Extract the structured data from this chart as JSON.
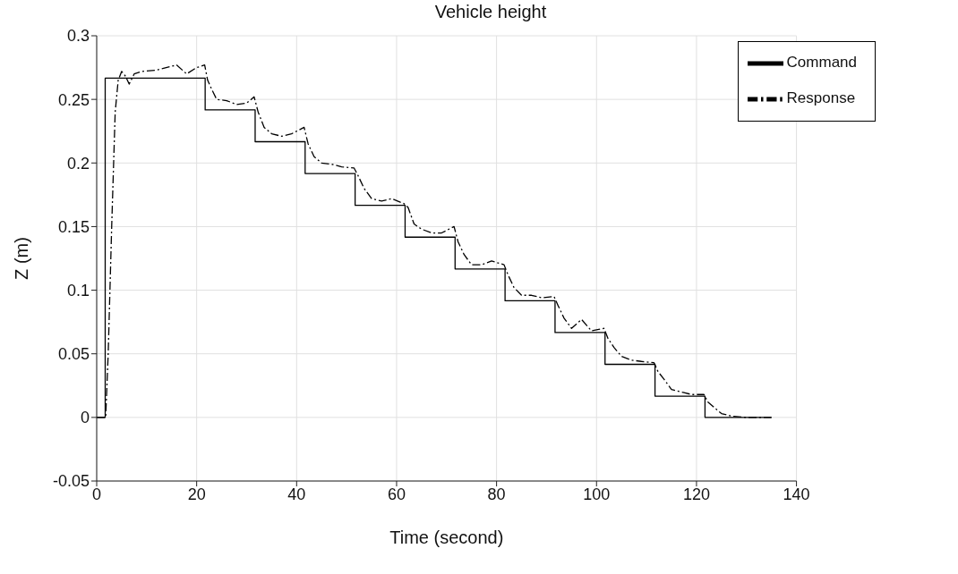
{
  "chart_data": {
    "type": "line",
    "title": "Vehicle height",
    "xlabel": "Time (second)",
    "ylabel": "Z (m)",
    "xlim": [
      0,
      140
    ],
    "xticks": [
      0,
      20,
      40,
      60,
      80,
      100,
      120,
      140
    ],
    "ylim": [
      -0.05,
      0.3
    ],
    "yticks": [
      -0.05,
      0,
      0.05,
      0.1,
      0.15,
      0.2,
      0.25,
      0.3
    ],
    "grid": true,
    "legend": "top right",
    "marker": "none",
    "series": [
      {
        "name": "Command",
        "type": "step",
        "color": "#000000",
        "line_style": "solid",
        "x": [
          0,
          1.7,
          21.7,
          31.7,
          41.7,
          51.7,
          61.7,
          71.7,
          81.7,
          91.7,
          101.7,
          111.7,
          121.7,
          135
        ],
        "values": [
          0,
          0.2667,
          0.2417,
          0.2167,
          0.1917,
          0.1667,
          0.1417,
          0.1167,
          0.0917,
          0.0667,
          0.0417,
          0.0167,
          0,
          0
        ]
      },
      {
        "name": "Response",
        "color": "#000000",
        "line_style": "dashdot",
        "x": [
          0,
          1.8,
          2.3,
          3,
          3.7,
          4.3,
          5,
          5.8,
          6.5,
          7.5,
          9,
          12,
          15,
          16,
          18,
          20,
          21.6,
          22.2,
          23,
          24,
          26,
          28,
          30,
          31.5,
          32.3,
          33.5,
          35,
          37,
          39,
          41.5,
          42.3,
          43.5,
          45,
          47,
          49,
          51.5,
          52.3,
          53.5,
          55,
          57,
          59,
          61.5,
          62.3,
          63.5,
          65,
          67,
          69,
          71.5,
          72.3,
          73.5,
          75,
          77,
          79,
          81.5,
          82.3,
          83.5,
          85,
          87,
          89,
          91.5,
          92.3,
          93.5,
          95,
          97,
          99,
          101.5,
          102.3,
          103.5,
          105,
          107,
          109,
          111.5,
          112.3,
          113.5,
          115,
          117,
          119,
          121.5,
          122.3,
          123.5,
          125,
          127,
          130,
          135
        ],
        "values": [
          0,
          0,
          0.05,
          0.15,
          0.24,
          0.265,
          0.272,
          0.268,
          0.262,
          0.27,
          0.272,
          0.273,
          0.276,
          0.277,
          0.27,
          0.275,
          0.277,
          0.265,
          0.258,
          0.25,
          0.249,
          0.246,
          0.247,
          0.252,
          0.24,
          0.228,
          0.223,
          0.221,
          0.223,
          0.228,
          0.215,
          0.205,
          0.2,
          0.199,
          0.197,
          0.196,
          0.19,
          0.18,
          0.172,
          0.17,
          0.172,
          0.168,
          0.165,
          0.152,
          0.148,
          0.145,
          0.145,
          0.15,
          0.138,
          0.128,
          0.12,
          0.12,
          0.123,
          0.12,
          0.112,
          0.102,
          0.096,
          0.096,
          0.094,
          0.095,
          0.088,
          0.078,
          0.07,
          0.077,
          0.068,
          0.07,
          0.062,
          0.055,
          0.048,
          0.045,
          0.044,
          0.043,
          0.036,
          0.03,
          0.022,
          0.02,
          0.018,
          0.018,
          0.012,
          0.008,
          0.003,
          0.001,
          0,
          0
        ]
      }
    ]
  }
}
